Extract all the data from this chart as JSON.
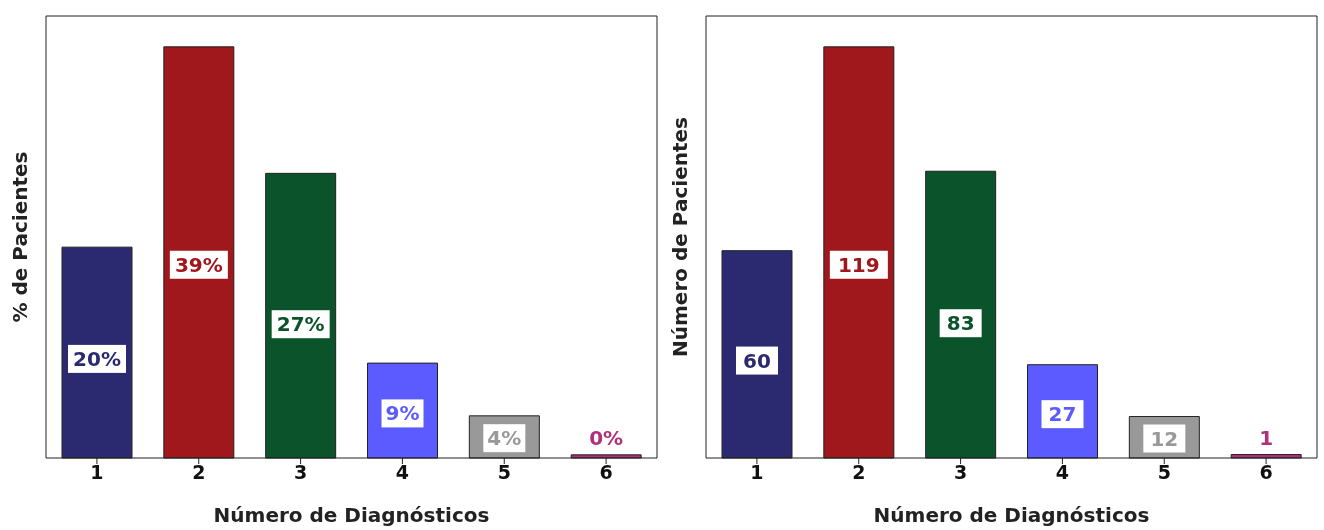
{
  "chart_data": [
    {
      "type": "bar",
      "xlabel": "Número de Diagnósticos",
      "ylabel": "% de Pacientes",
      "categories": [
        "1",
        "2",
        "3",
        "4",
        "5",
        "6"
      ],
      "values": [
        20,
        39,
        27,
        9,
        4,
        0.3
      ],
      "colors": [
        "#2b2a70",
        "#a0171c",
        "#0a532b",
        "#5b5bff",
        "#999999",
        "#b0307a"
      ],
      "value_labels": [
        "20%",
        "39%",
        "27%",
        "9%",
        "4%",
        "0%"
      ],
      "tick_labels": "x"
    },
    {
      "type": "bar",
      "xlabel": "Número de Diagnósticos",
      "ylabel": "Número de Pacientes",
      "categories": [
        "1",
        "2",
        "3",
        "4",
        "5",
        "6"
      ],
      "values": [
        60,
        119,
        83,
        27,
        12,
        1
      ],
      "colors": [
        "#2b2a70",
        "#a0171c",
        "#0a532b",
        "#5b5bff",
        "#999999",
        "#b0307a"
      ],
      "value_labels": [
        "60",
        "119",
        "83",
        "27",
        "12",
        "1"
      ],
      "tick_labels": "x"
    }
  ]
}
